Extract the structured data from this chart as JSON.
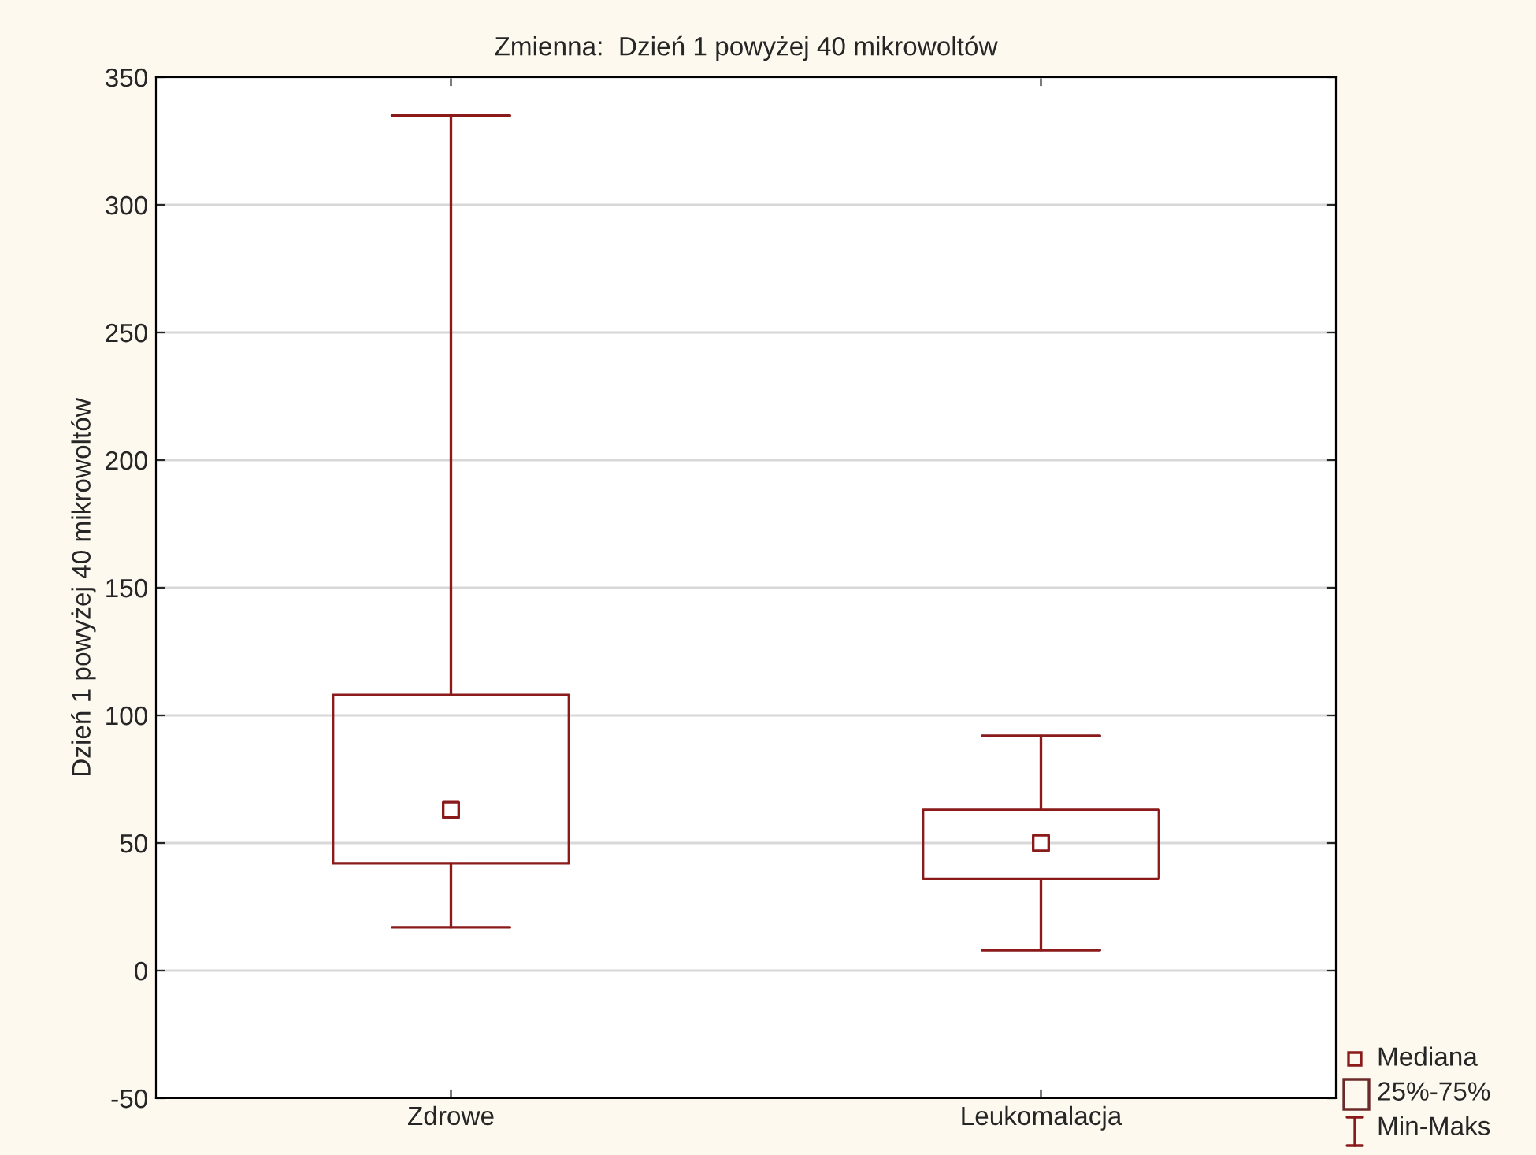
{
  "chart_data": {
    "type": "box",
    "title": "Zmienna:  Dzień 1 powyżej 40 mikrowoltów",
    "ylabel": "Dzień 1 powyżej 40 mikrowoltów",
    "categories": [
      "Zdrowe",
      "Leukomalacja"
    ],
    "boxes": [
      {
        "low": 17,
        "q1": 42,
        "median": 63,
        "q3": 108,
        "high": 335
      },
      {
        "low": 8,
        "q1": 36,
        "median": 50,
        "q3": 63,
        "high": 92
      }
    ],
    "color": "#8b1a1a",
    "annotations": [
      "Mediana",
      "25%-75%",
      "Min-Maks"
    ],
    "ylim": [
      -50,
      350
    ],
    "yticks": [
      -50,
      0,
      50,
      100,
      150,
      200,
      250,
      300,
      350
    ],
    "grid": "y"
  }
}
